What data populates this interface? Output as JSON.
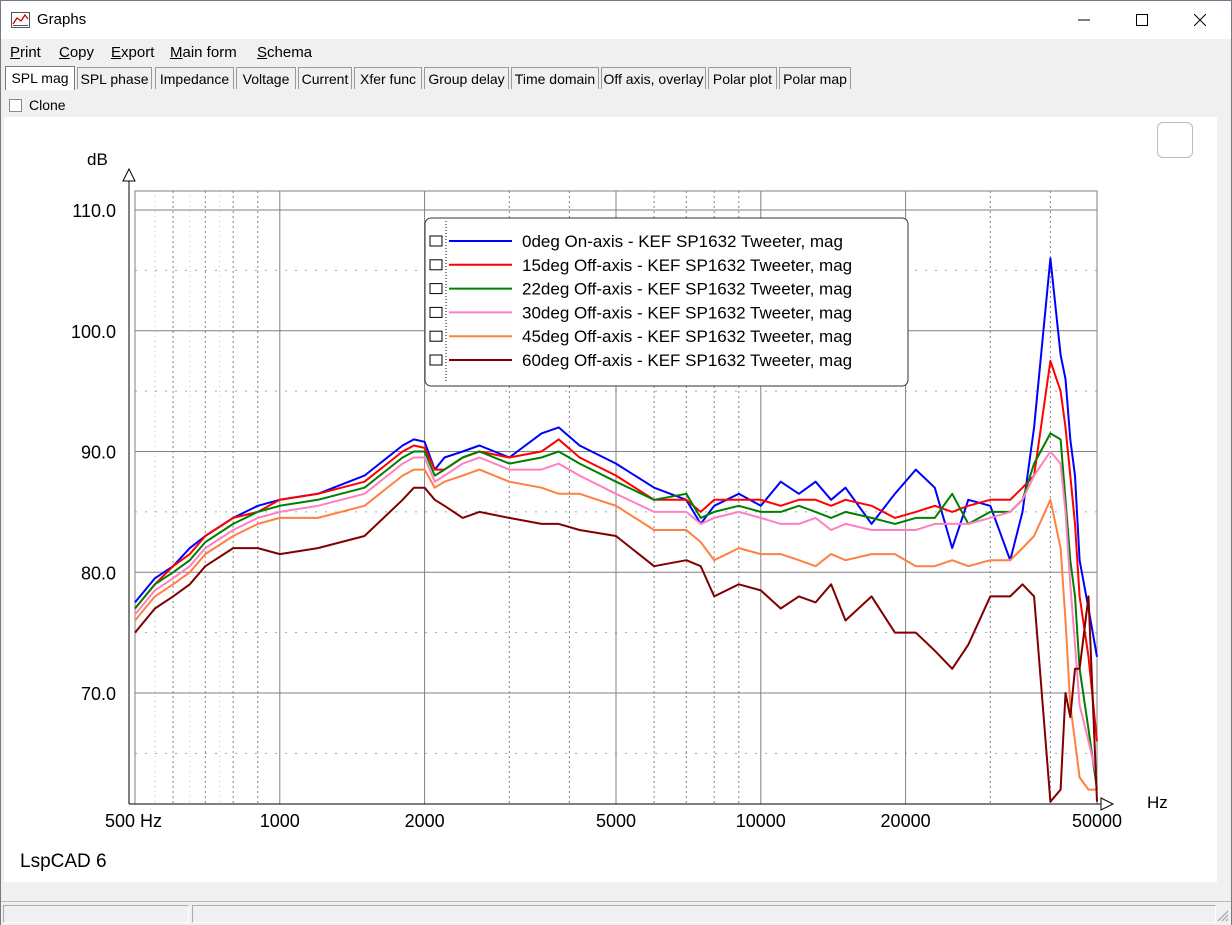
{
  "window": {
    "title": "Graphs",
    "minimize": "—",
    "maximize": "☐",
    "close": "✕"
  },
  "menu": [
    {
      "label": "Print",
      "ul": "P",
      "rest": "rint"
    },
    {
      "label": "Copy",
      "ul": "C",
      "rest": "opy"
    },
    {
      "label": "Export",
      "ul": "E",
      "rest": "xport"
    },
    {
      "label": "Main form",
      "ul": "M",
      "rest": "ain form"
    },
    {
      "label": "Schema",
      "ul": "S",
      "rest": "chema"
    }
  ],
  "tabs": [
    "SPL mag",
    "SPL phase",
    "Impedance",
    "Voltage",
    "Current",
    "Xfer func",
    "Group delay",
    "Time domain",
    "Off axis, overlay",
    "Polar plot",
    "Polar map"
  ],
  "active_tab": "SPL mag",
  "clone_label": "Clone",
  "watermark": "LspCAD 6",
  "colors": {
    "grid": "#808080",
    "legend_border": "#333333"
  },
  "chart_data": {
    "type": "line",
    "ylabel": "dB",
    "xlabel": "Hz",
    "xscale": "log",
    "xlim": [
      500,
      50000
    ],
    "ylim": [
      60,
      111
    ],
    "yticks": [
      70,
      80,
      90,
      100,
      110
    ],
    "ytick_labels": [
      "70.0",
      "80.0",
      "90.0",
      "100.0",
      "110.0"
    ],
    "xticks": [
      500,
      1000,
      2000,
      5000,
      10000,
      20000,
      50000
    ],
    "xtick_labels": [
      "500 Hz",
      "1000",
      "2000",
      "5000",
      "10000",
      "20000",
      "50000"
    ],
    "legend_position": "top-center",
    "series": [
      {
        "name": "0deg On-axis - KEF SP1632 Tweeter, mag",
        "color": "#0000ff",
        "x": [
          500,
          550,
          600,
          650,
          700,
          800,
          900,
          1000,
          1200,
          1500,
          1800,
          1900,
          2000,
          2100,
          2200,
          2400,
          2600,
          3000,
          3500,
          3800,
          4200,
          5000,
          6000,
          7000,
          7500,
          8000,
          9000,
          10000,
          11000,
          12000,
          13000,
          14000,
          15000,
          17000,
          19000,
          21000,
          23000,
          25000,
          27000,
          30000,
          33000,
          35000,
          37000,
          40000,
          42000,
          43000,
          44000,
          45000,
          46000,
          48000,
          50000
        ],
        "y": [
          77.5,
          79.5,
          80.5,
          82,
          83,
          84.5,
          85.5,
          86,
          86.5,
          88,
          90.5,
          91,
          90.8,
          88.5,
          89.5,
          90,
          90.5,
          89.5,
          91.5,
          92,
          90.5,
          89,
          87,
          86,
          84,
          85.5,
          86.5,
          85.5,
          87.5,
          86.5,
          87.5,
          86,
          87,
          84,
          86.5,
          88.5,
          87,
          82,
          86,
          85.5,
          81,
          85,
          92,
          106,
          98,
          96,
          91,
          88,
          81,
          77,
          73
        ]
      },
      {
        "name": "15deg Off-axis - KEF SP1632 Tweeter, mag",
        "color": "#ff0000",
        "x": [
          500,
          550,
          600,
          650,
          700,
          800,
          900,
          1000,
          1200,
          1500,
          1800,
          1900,
          2000,
          2100,
          2200,
          2400,
          2600,
          3000,
          3500,
          3800,
          4200,
          5000,
          6000,
          7000,
          7500,
          8000,
          9000,
          10000,
          11000,
          12000,
          13000,
          14000,
          15000,
          17000,
          19000,
          21000,
          23000,
          25000,
          27000,
          30000,
          33000,
          35000,
          37000,
          40000,
          42000,
          43000,
          44000,
          45000,
          46000,
          48000,
          50000
        ],
        "y": [
          77,
          79,
          80.5,
          81.5,
          83,
          84.5,
          85,
          86,
          86.5,
          87.5,
          90,
          90.5,
          90.3,
          88.5,
          88.5,
          89.5,
          90,
          89.5,
          90,
          91,
          89.5,
          88,
          86,
          86,
          85,
          86,
          86,
          86,
          85.5,
          86,
          86,
          85.5,
          86,
          85.5,
          84.5,
          85,
          85.5,
          85,
          85.5,
          86,
          86,
          87,
          88,
          97.5,
          95,
          92,
          88,
          84,
          78,
          73,
          66
        ]
      },
      {
        "name": "22deg Off-axis - KEF SP1632 Tweeter, mag",
        "color": "#008000",
        "x": [
          500,
          550,
          600,
          650,
          700,
          800,
          900,
          1000,
          1200,
          1500,
          1800,
          1900,
          2000,
          2100,
          2200,
          2400,
          2600,
          3000,
          3500,
          3800,
          4200,
          5000,
          6000,
          7000,
          7500,
          8000,
          9000,
          10000,
          11000,
          12000,
          13000,
          14000,
          15000,
          17000,
          19000,
          21000,
          23000,
          25000,
          27000,
          30000,
          33000,
          35000,
          37000,
          40000,
          42000,
          43000,
          44000,
          45000,
          46000,
          48000,
          50000
        ],
        "y": [
          77,
          79,
          80,
          81,
          82.5,
          84,
          85,
          85.5,
          86,
          87,
          89.5,
          90,
          90,
          88,
          88.5,
          89.5,
          90,
          89,
          89.5,
          90,
          89,
          87.5,
          86,
          86.5,
          84.5,
          85,
          85.5,
          85,
          85,
          85.5,
          85,
          84.5,
          85,
          84.5,
          84,
          84.5,
          84.5,
          86.5,
          84,
          85,
          85,
          86,
          89,
          91.5,
          91,
          86,
          81,
          78,
          72,
          67,
          62
        ]
      },
      {
        "name": "30deg Off-axis - KEF SP1632 Tweeter, mag",
        "color": "#ff80c0",
        "x": [
          500,
          550,
          600,
          650,
          700,
          800,
          900,
          1000,
          1200,
          1500,
          1800,
          1900,
          2000,
          2100,
          2200,
          2400,
          2600,
          3000,
          3500,
          3800,
          4200,
          5000,
          6000,
          7000,
          7500,
          8000,
          9000,
          10000,
          11000,
          12000,
          13000,
          14000,
          15000,
          17000,
          19000,
          21000,
          23000,
          25000,
          27000,
          30000,
          33000,
          35000,
          37000,
          40000,
          42000,
          43000,
          44000,
          45000,
          46000,
          48000,
          50000
        ],
        "y": [
          76.5,
          78.5,
          79.5,
          80.5,
          82,
          83.5,
          84.5,
          85,
          85.5,
          86.5,
          89,
          89.5,
          89.5,
          87.5,
          88,
          89,
          89.5,
          88.5,
          88.5,
          89,
          88,
          86.5,
          85,
          85,
          84,
          84.5,
          85,
          84.5,
          84,
          84,
          84.5,
          83.5,
          84,
          83.5,
          83.5,
          83.5,
          84,
          84,
          84,
          84.5,
          85,
          86,
          88,
          90,
          89,
          85,
          79,
          74,
          69,
          66,
          63
        ]
      },
      {
        "name": "45deg Off-axis - KEF SP1632 Tweeter, mag",
        "color": "#ff8040",
        "x": [
          500,
          550,
          600,
          650,
          700,
          800,
          900,
          1000,
          1200,
          1500,
          1800,
          1900,
          2000,
          2100,
          2200,
          2400,
          2600,
          3000,
          3500,
          3800,
          4200,
          5000,
          6000,
          7000,
          7500,
          8000,
          9000,
          10000,
          11000,
          12000,
          13000,
          14000,
          15000,
          17000,
          19000,
          21000,
          23000,
          25000,
          27000,
          30000,
          33000,
          35000,
          37000,
          40000,
          42000,
          43000,
          44000,
          45000,
          46000,
          48000,
          50000
        ],
        "y": [
          76,
          78,
          79,
          80,
          81.5,
          83,
          84,
          84.5,
          84.5,
          85.5,
          88,
          88.5,
          88.5,
          87,
          87.5,
          88,
          88.5,
          87.5,
          87,
          86.5,
          86.5,
          85.5,
          83.5,
          83.5,
          82.5,
          81,
          82,
          81.5,
          81.5,
          81,
          80.5,
          81.5,
          81,
          81.5,
          81.5,
          80.5,
          80.5,
          81,
          80.5,
          81,
          81,
          82,
          83,
          86,
          82,
          76,
          69,
          66,
          63,
          62,
          62
        ]
      },
      {
        "name": "60deg Off-axis - KEF SP1632 Tweeter, mag",
        "color": "#800000",
        "x": [
          500,
          550,
          600,
          650,
          700,
          800,
          900,
          1000,
          1200,
          1500,
          1800,
          1900,
          2000,
          2100,
          2200,
          2400,
          2600,
          3000,
          3500,
          3800,
          4200,
          5000,
          6000,
          7000,
          7500,
          8000,
          9000,
          10000,
          11000,
          12000,
          13000,
          14000,
          15000,
          17000,
          19000,
          21000,
          23000,
          25000,
          27000,
          30000,
          33000,
          35000,
          37000,
          40000,
          42000,
          43000,
          44000,
          45000,
          46000,
          48000,
          50000
        ],
        "y": [
          75,
          77,
          78,
          79,
          80.5,
          82,
          82,
          81.5,
          82,
          83,
          86,
          87,
          87,
          86,
          85.5,
          84.5,
          85,
          84.5,
          84,
          84,
          83.5,
          83,
          80.5,
          81,
          80.5,
          78,
          79,
          78.5,
          77,
          78,
          77.5,
          79,
          76,
          78,
          75,
          75,
          73.5,
          72,
          74,
          78,
          78,
          79,
          78,
          61,
          62,
          70,
          68,
          72,
          72,
          78,
          61
        ]
      }
    ]
  }
}
